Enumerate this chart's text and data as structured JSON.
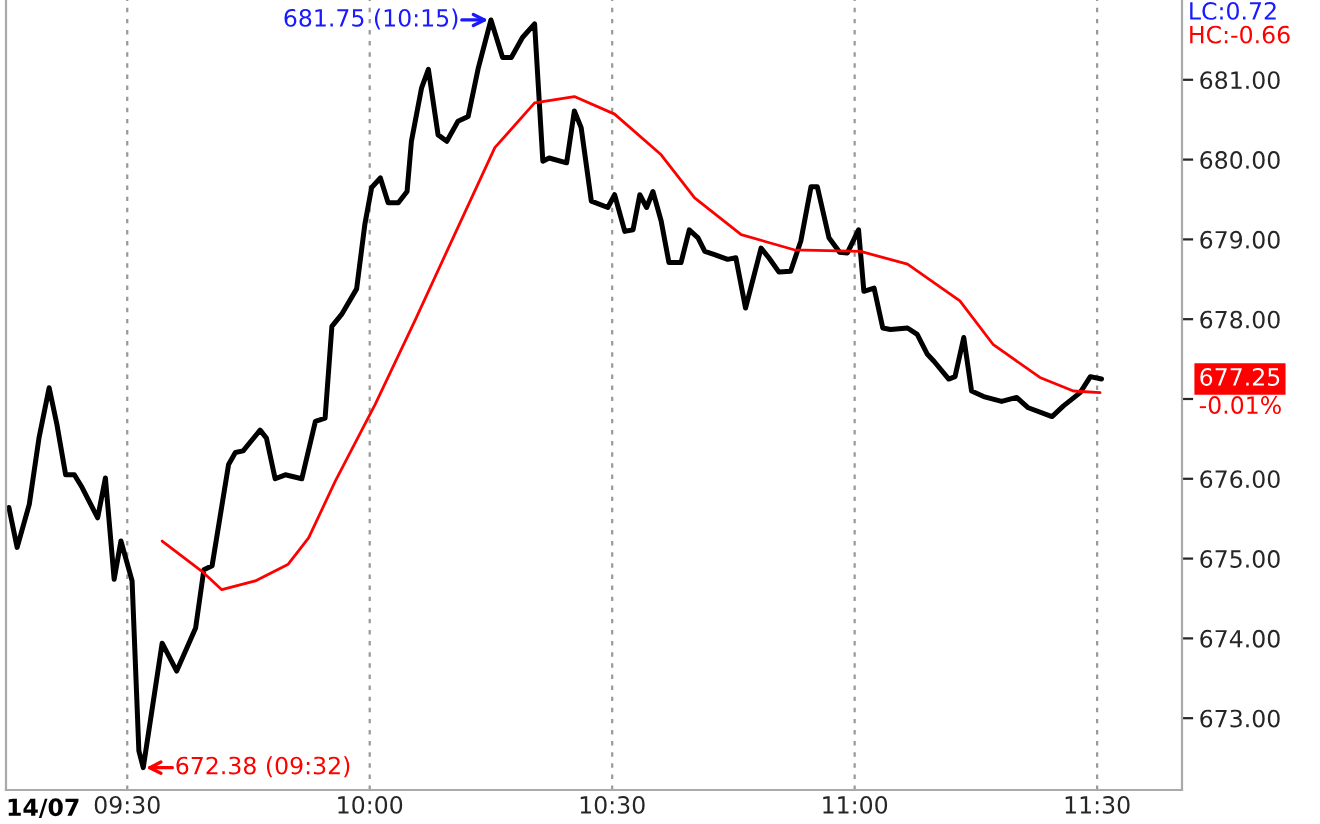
{
  "chart_data": {
    "type": "line",
    "grid": "x",
    "marker": "none",
    "line_style": "solid",
    "xlim": [
      9.25,
      11.675
    ],
    "ylim": [
      672.1,
      682.0
    ],
    "xticks": [
      {
        "value": 9.5,
        "label": "09:30"
      },
      {
        "value": 10.0,
        "label": "10:00"
      },
      {
        "value": 10.5,
        "label": "10:30"
      },
      {
        "value": 11.0,
        "label": "11:00"
      },
      {
        "value": 11.5,
        "label": "11:30"
      }
    ],
    "yticks": [
      {
        "value": 673,
        "label": "673.00"
      },
      {
        "value": 674,
        "label": "674.00"
      },
      {
        "value": 675,
        "label": "675.00"
      },
      {
        "value": 676,
        "label": "676.00"
      },
      {
        "value": 677,
        "label": null
      },
      {
        "value": 678,
        "label": "678.00"
      },
      {
        "value": 679,
        "label": "679.00"
      },
      {
        "value": 680,
        "label": "680.00"
      },
      {
        "value": 681,
        "label": "681.00"
      }
    ],
    "series": [
      {
        "color": "#000000",
        "x": [
          9.256,
          9.273,
          9.298,
          9.318,
          9.339,
          9.355,
          9.373,
          9.391,
          9.407,
          9.439,
          9.455,
          9.473,
          9.487,
          9.51,
          9.524,
          9.533,
          9.572,
          9.602,
          9.641,
          9.658,
          9.675,
          9.709,
          9.723,
          9.739,
          9.774,
          9.787,
          9.805,
          9.826,
          9.86,
          9.888,
          9.908,
          9.922,
          9.942,
          9.973,
          9.99,
          10.004,
          10.022,
          10.038,
          10.059,
          10.077,
          10.086,
          10.107,
          10.121,
          10.141,
          10.159,
          10.182,
          10.203,
          10.224,
          10.25,
          10.274,
          10.292,
          10.315,
          10.34,
          10.357,
          10.37,
          10.406,
          10.422,
          10.436,
          10.457,
          10.491,
          10.505,
          10.526,
          10.543,
          10.557,
          10.571,
          10.584,
          10.601,
          10.617,
          10.642,
          10.659,
          10.677,
          10.691,
          10.711,
          10.738,
          10.755,
          10.775,
          10.807,
          10.823,
          10.844,
          10.868,
          10.889,
          10.91,
          10.923,
          10.947,
          10.969,
          10.985,
          11.008,
          11.019,
          11.04,
          11.058,
          11.074,
          11.109,
          11.129,
          11.15,
          11.164,
          11.194,
          11.207,
          11.225,
          11.241,
          11.266,
          11.303,
          11.334,
          11.358,
          11.407,
          11.43,
          11.465,
          11.486,
          11.509
        ],
        "values": [
          675.64,
          675.14,
          675.68,
          676.51,
          677.14,
          676.68,
          676.05,
          676.05,
          675.89,
          675.51,
          676.01,
          674.74,
          675.22,
          674.72,
          672.59,
          672.38,
          673.94,
          673.59,
          674.13,
          674.86,
          674.91,
          676.18,
          676.33,
          676.35,
          676.61,
          676.51,
          676.0,
          676.05,
          676.0,
          676.72,
          676.76,
          677.91,
          678.06,
          678.38,
          679.19,
          679.65,
          679.77,
          679.46,
          679.46,
          679.6,
          680.23,
          680.9,
          681.13,
          680.31,
          680.23,
          680.48,
          680.54,
          681.15,
          681.75,
          681.28,
          681.28,
          681.53,
          681.7,
          679.98,
          680.02,
          679.96,
          680.61,
          680.4,
          679.48,
          679.4,
          679.56,
          679.1,
          679.12,
          679.56,
          679.4,
          679.6,
          679.23,
          678.71,
          678.71,
          679.12,
          679.02,
          678.85,
          678.81,
          678.75,
          678.77,
          678.14,
          678.89,
          678.77,
          678.59,
          678.6,
          678.98,
          679.66,
          679.66,
          679.02,
          678.84,
          678.83,
          679.12,
          678.35,
          678.39,
          677.89,
          677.87,
          677.89,
          677.81,
          677.56,
          677.47,
          677.25,
          677.28,
          677.77,
          677.1,
          677.03,
          676.97,
          677.02,
          676.89,
          676.78,
          676.91,
          677.08,
          677.28,
          677.25
        ]
      },
      {
        "color": "#ff0000",
        "x": [
          9.572,
          9.654,
          9.695,
          9.764,
          9.832,
          9.874,
          9.929,
          10.011,
          10.093,
          10.175,
          10.258,
          10.34,
          10.422,
          10.505,
          10.601,
          10.67,
          10.766,
          10.875,
          11.012,
          11.109,
          11.217,
          11.286,
          11.382,
          11.451,
          11.506
        ],
        "values": [
          675.22,
          674.84,
          674.61,
          674.72,
          674.93,
          675.26,
          675.97,
          676.93,
          677.98,
          679.06,
          680.15,
          680.71,
          680.79,
          680.57,
          680.06,
          679.52,
          679.06,
          678.87,
          678.85,
          678.69,
          678.23,
          677.68,
          677.27,
          677.1,
          677.08
        ]
      }
    ],
    "annotations": [
      {
        "text": "681.75 (10:15)",
        "x": 10.25,
        "y": 681.75
      },
      {
        "text": "672.38 (09:32)",
        "x": 9.533,
        "y": 672.38
      },
      "LC:0.72",
      "HC:-0.66",
      "677.25",
      "-0.01%",
      "14/07"
    ]
  }
}
